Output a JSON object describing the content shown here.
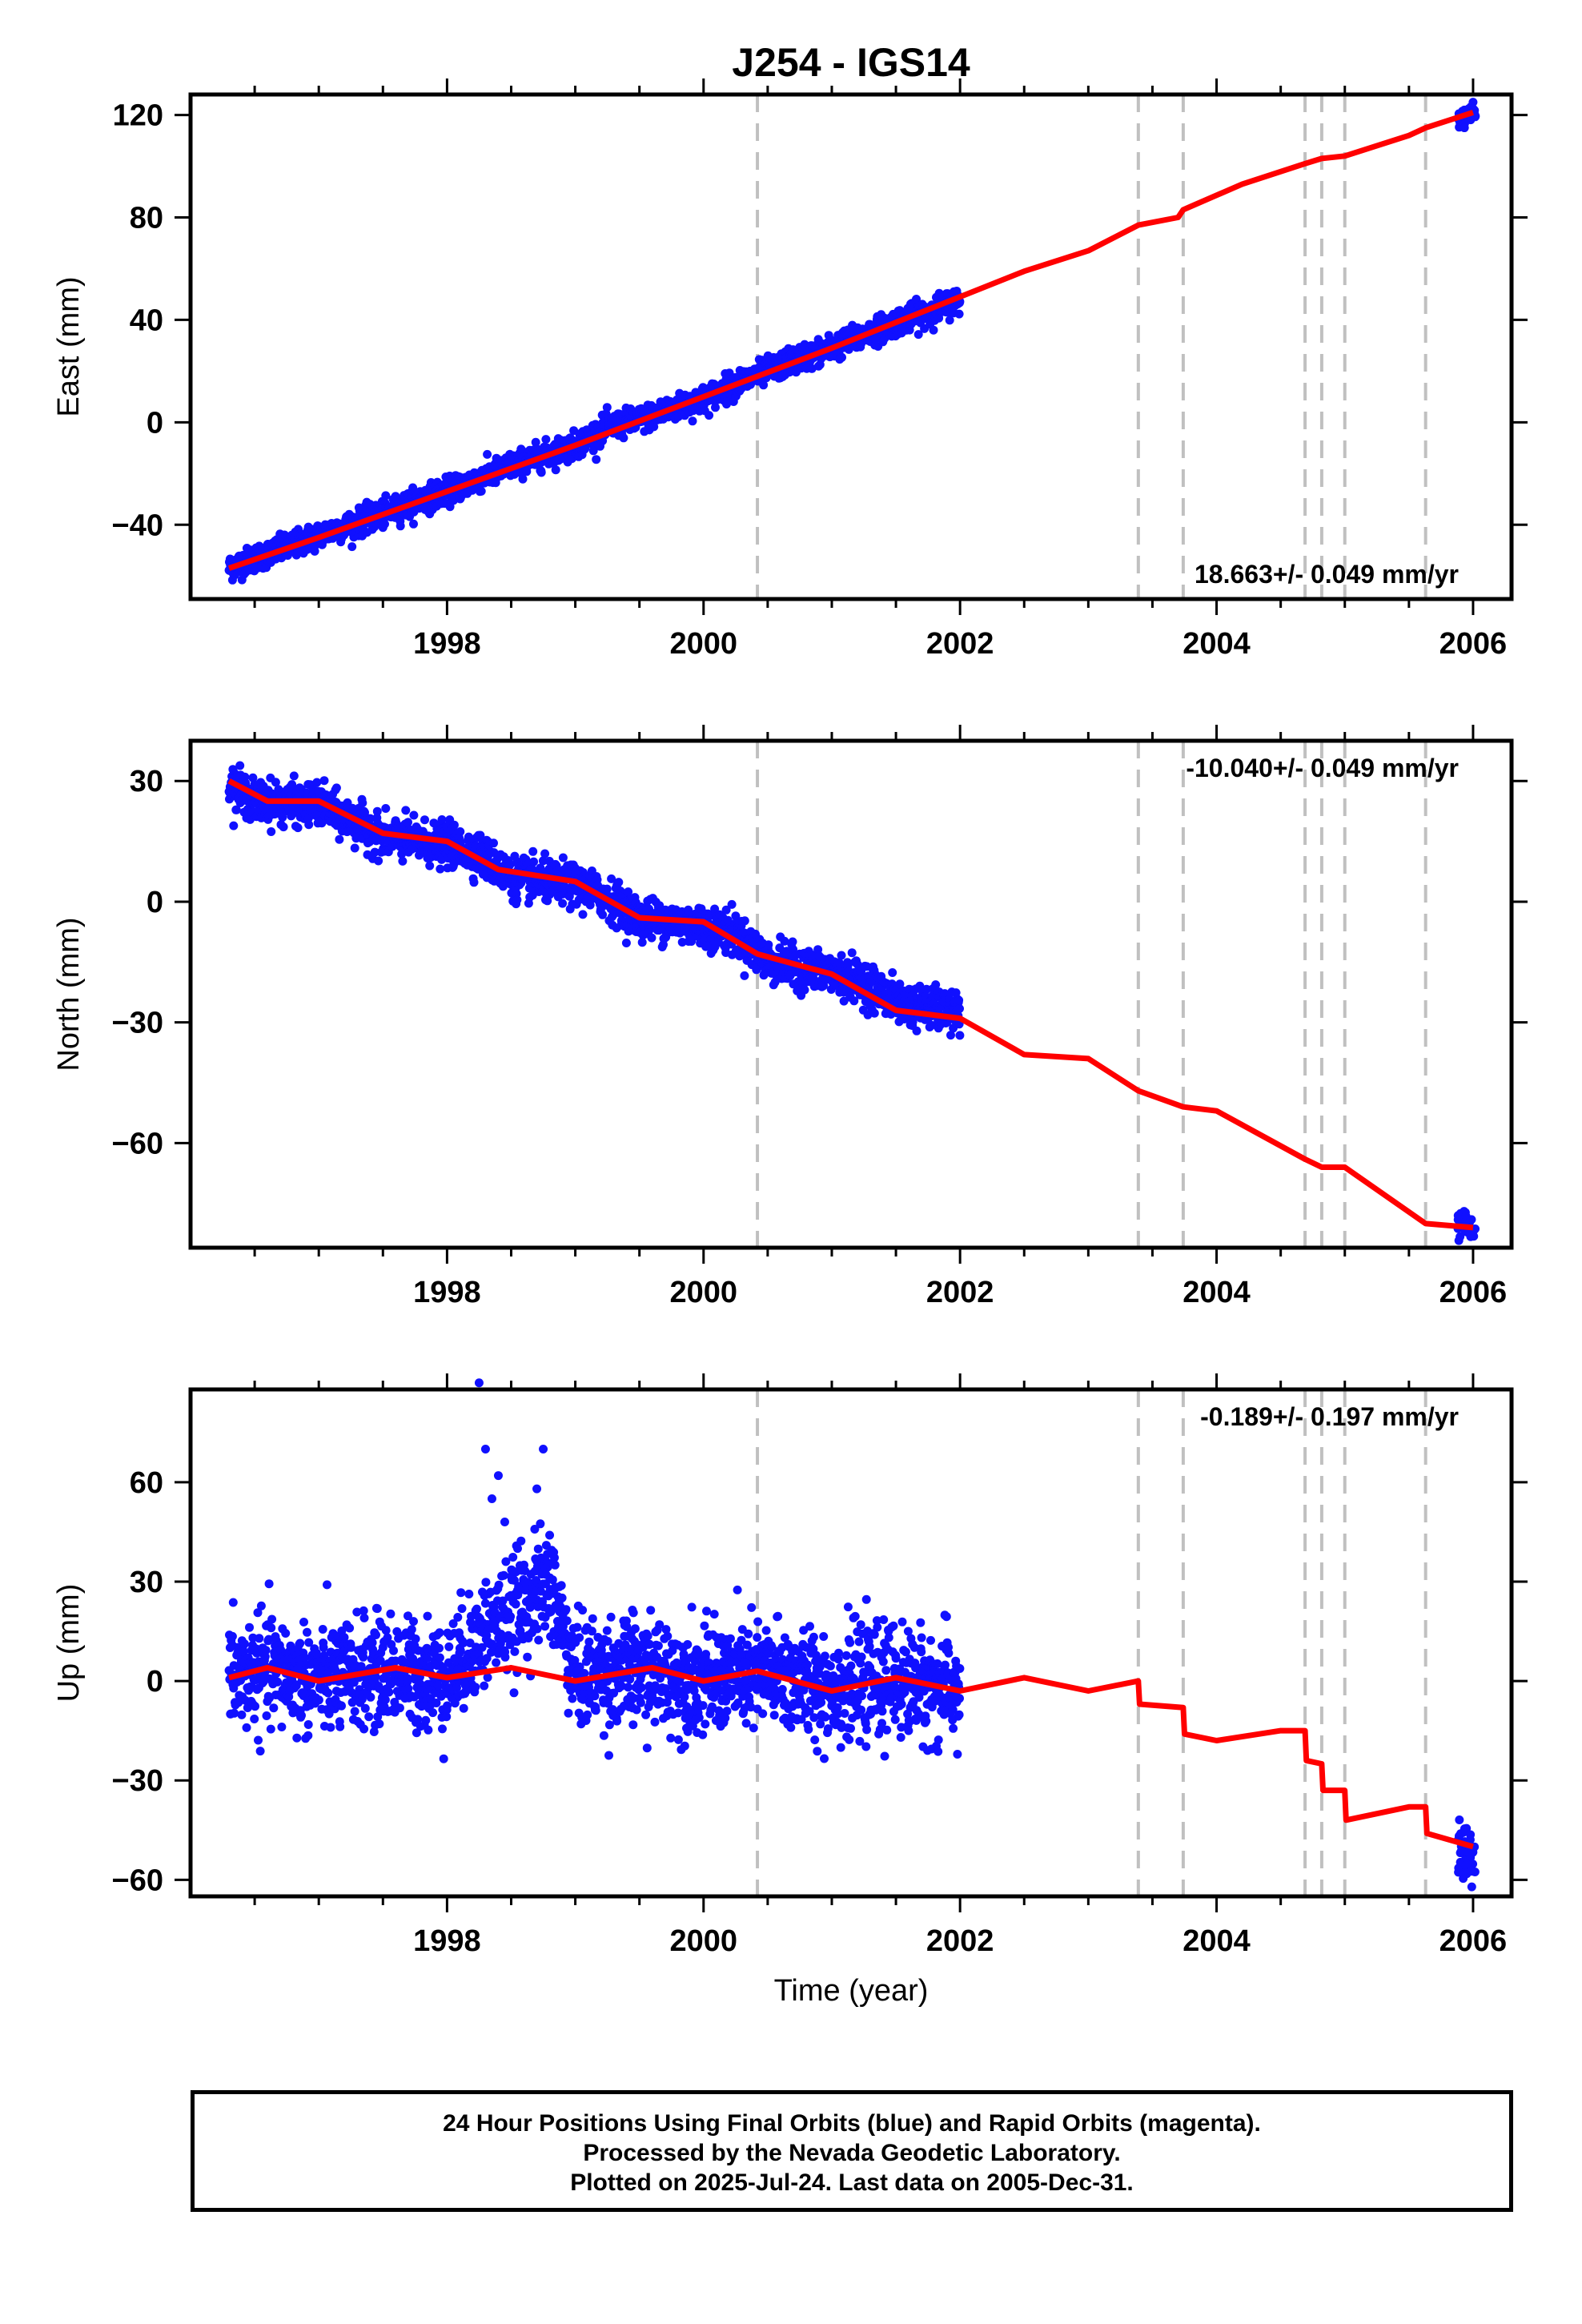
{
  "chart_data": [
    {
      "type": "scatter",
      "panel": "east",
      "title": "J254 - IGS14",
      "ylabel": "East (mm)",
      "xlim": [
        1996.0,
        2006.3
      ],
      "ylim": [
        -69,
        128
      ],
      "xticks": [
        1998,
        2000,
        2002,
        2004,
        2006
      ],
      "yticks": [
        -40,
        0,
        40,
        80,
        120
      ],
      "rate": "18.663+/- 0.049 mm/yr",
      "breaks": [
        2000.42,
        2003.39,
        2003.74,
        2004.69,
        2004.82,
        2005.0,
        2005.63
      ],
      "data_range": [
        1996.3,
        2002.0
      ],
      "final_points": [
        [
          1996.3,
          -57
        ],
        [
          1996.5,
          -53
        ],
        [
          1996.75,
          -49
        ],
        [
          1997.0,
          -44
        ],
        [
          1997.25,
          -40
        ],
        [
          1997.5,
          -36
        ],
        [
          1997.75,
          -31
        ],
        [
          1998.0,
          -27
        ],
        [
          1998.25,
          -22
        ],
        [
          1998.5,
          -17
        ],
        [
          1998.75,
          -13
        ],
        [
          1999.0,
          -9
        ],
        [
          1999.25,
          -2
        ],
        [
          1999.5,
          1
        ],
        [
          1999.75,
          5
        ],
        [
          2000.0,
          9
        ],
        [
          2000.25,
          15
        ],
        [
          2000.5,
          20
        ],
        [
          2000.75,
          25
        ],
        [
          2001.0,
          29
        ],
        [
          2001.25,
          34
        ],
        [
          2001.5,
          39
        ],
        [
          2001.75,
          43
        ],
        [
          2002.0,
          48
        ]
      ],
      "rapid_points": [
        [
          2005.9,
          118
        ],
        [
          2006.0,
          121
        ]
      ],
      "model": [
        [
          1996.3,
          -57
        ],
        [
          1997.0,
          -45
        ],
        [
          1998.0,
          -27
        ],
        [
          1999.0,
          -9
        ],
        [
          2000.0,
          10
        ],
        [
          2001.0,
          29
        ],
        [
          2002.0,
          49
        ],
        [
          2002.5,
          59
        ],
        [
          2003.0,
          67
        ],
        [
          2003.39,
          77
        ],
        [
          2003.7,
          80
        ],
        [
          2003.74,
          83
        ],
        [
          2004.2,
          93
        ],
        [
          2004.69,
          101
        ],
        [
          2004.82,
          103
        ],
        [
          2005.0,
          104
        ],
        [
          2005.5,
          112
        ],
        [
          2005.63,
          115
        ],
        [
          2006.0,
          121
        ]
      ],
      "scatter_noise": 2.5
    },
    {
      "type": "scatter",
      "panel": "north",
      "ylabel": "North (mm)",
      "xlim": [
        1996.0,
        2006.3
      ],
      "ylim": [
        -86,
        40
      ],
      "xticks": [
        1998,
        2000,
        2002,
        2004,
        2006
      ],
      "yticks": [
        -60,
        -30,
        0,
        30
      ],
      "rate": "-10.040+/- 0.049 mm/yr",
      "breaks": [
        2000.42,
        2003.39,
        2003.74,
        2004.69,
        2004.82,
        2005.0,
        2005.63
      ],
      "data_range": [
        1996.3,
        2002.0
      ],
      "final_points": [
        [
          1996.3,
          29
        ],
        [
          1996.5,
          25
        ],
        [
          1997.0,
          24
        ],
        [
          1997.25,
          20
        ],
        [
          1997.5,
          16
        ],
        [
          1998.0,
          14
        ],
        [
          1998.25,
          12
        ],
        [
          1998.5,
          6
        ],
        [
          1999.0,
          4
        ],
        [
          1999.25,
          1
        ],
        [
          1999.5,
          -4
        ],
        [
          2000.0,
          -6
        ],
        [
          2000.25,
          -8
        ],
        [
          2000.5,
          -15
        ],
        [
          2001.0,
          -18
        ],
        [
          2001.25,
          -20
        ],
        [
          2001.5,
          -25
        ],
        [
          2002.0,
          -28
        ]
      ],
      "rapid_points": [
        [
          2005.9,
          -80
        ],
        [
          2006.0,
          -82
        ]
      ],
      "model": [
        [
          1996.3,
          30
        ],
        [
          1996.6,
          25
        ],
        [
          1997.0,
          25
        ],
        [
          1997.5,
          17
        ],
        [
          1998.0,
          15
        ],
        [
          1998.4,
          8
        ],
        [
          1999.0,
          5
        ],
        [
          1999.5,
          -4
        ],
        [
          2000.0,
          -5
        ],
        [
          2000.42,
          -13
        ],
        [
          2001.0,
          -18
        ],
        [
          2001.5,
          -27
        ],
        [
          2002.0,
          -29
        ],
        [
          2002.5,
          -38
        ],
        [
          2003.0,
          -39
        ],
        [
          2003.39,
          -47
        ],
        [
          2003.74,
          -51
        ],
        [
          2004.0,
          -52
        ],
        [
          2004.69,
          -64
        ],
        [
          2004.82,
          -66
        ],
        [
          2005.0,
          -66
        ],
        [
          2005.63,
          -80
        ],
        [
          2006.0,
          -81
        ]
      ],
      "scatter_noise": 2.5
    },
    {
      "type": "scatter",
      "panel": "up",
      "ylabel": "Up (mm)",
      "xlabel": "Time (year)",
      "xlim": [
        1996.0,
        2006.3
      ],
      "ylim": [
        -65,
        88
      ],
      "xticks": [
        1998,
        2000,
        2002,
        2004,
        2006
      ],
      "yticks": [
        -60,
        -30,
        0,
        30,
        60
      ],
      "rate": "-0.189+/- 0.197 mm/yr",
      "breaks": [
        2000.42,
        2003.39,
        2003.74,
        2004.69,
        2004.82,
        2005.0,
        2005.63
      ],
      "data_range": [
        1996.3,
        2002.0
      ],
      "final_points": [
        [
          1996.3,
          1
        ],
        [
          1996.6,
          3
        ],
        [
          1997.0,
          0
        ],
        [
          1997.5,
          3
        ],
        [
          1998.0,
          1
        ],
        [
          1998.3,
          15
        ],
        [
          1998.5,
          20
        ],
        [
          1998.8,
          30
        ],
        [
          1999.0,
          2
        ],
        [
          1999.5,
          3
        ],
        [
          2000.0,
          0
        ],
        [
          2000.5,
          2
        ],
        [
          2001.0,
          -2
        ],
        [
          2001.5,
          0
        ],
        [
          2002.0,
          -3
        ]
      ],
      "rapid_points": [
        [
          2005.9,
          -50
        ],
        [
          2006.0,
          -55
        ]
      ],
      "model": [
        [
          1996.3,
          1
        ],
        [
          1996.6,
          4
        ],
        [
          1997.0,
          0
        ],
        [
          1997.6,
          4
        ],
        [
          1998.0,
          1
        ],
        [
          1998.5,
          4
        ],
        [
          1999.0,
          0
        ],
        [
          1999.6,
          4
        ],
        [
          2000.0,
          0
        ],
        [
          2000.42,
          3
        ],
        [
          2001.0,
          -3
        ],
        [
          2001.5,
          1
        ],
        [
          2002.0,
          -3
        ],
        [
          2002.5,
          1
        ],
        [
          2003.0,
          -3
        ],
        [
          2003.39,
          0
        ],
        [
          2003.4,
          -7
        ],
        [
          2003.74,
          -8
        ],
        [
          2003.75,
          -16
        ],
        [
          2004.0,
          -18
        ],
        [
          2004.5,
          -15
        ],
        [
          2004.69,
          -15
        ],
        [
          2004.7,
          -24
        ],
        [
          2004.82,
          -25
        ],
        [
          2004.83,
          -33
        ],
        [
          2005.0,
          -33
        ],
        [
          2005.01,
          -42
        ],
        [
          2005.5,
          -38
        ],
        [
          2005.63,
          -38
        ],
        [
          2005.64,
          -46
        ],
        [
          2006.0,
          -50
        ]
      ],
      "scatter_noise": 8.0,
      "outliers": [
        [
          1998.25,
          90
        ],
        [
          1998.3,
          70
        ],
        [
          1998.35,
          55
        ],
        [
          1998.4,
          62
        ],
        [
          1998.45,
          48
        ],
        [
          1998.55,
          40
        ],
        [
          1998.7,
          58
        ],
        [
          1998.75,
          70
        ],
        [
          1998.8,
          44
        ],
        [
          1998.6,
          35
        ]
      ]
    }
  ],
  "colors": {
    "final_orbits": "#1010ff",
    "model": "#ff0000",
    "breaks": "#c0c0c0",
    "frame": "#000000"
  },
  "footer": {
    "line1": "24 Hour Positions Using Final Orbits (blue) and Rapid Orbits (magenta).",
    "line2": "Processed by the Nevada Geodetic Laboratory.",
    "line3": "Plotted on 2025-Jul-24. Last data on 2005-Dec-31."
  }
}
